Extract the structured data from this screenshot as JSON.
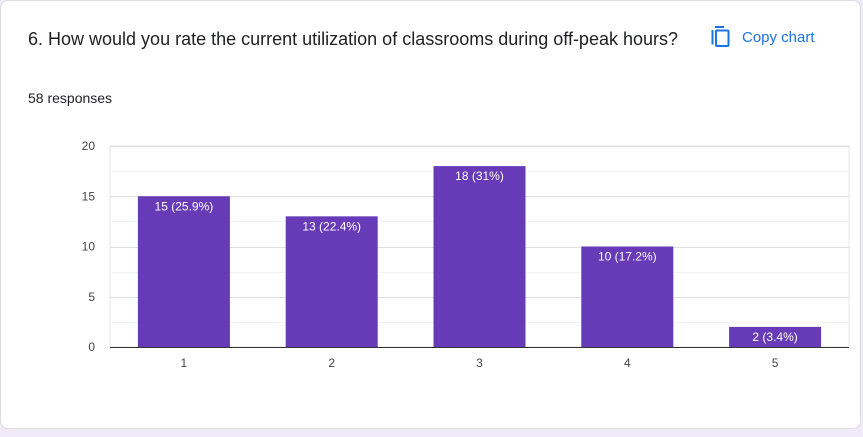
{
  "question": {
    "title": "6. How would you rate the current utilization of classrooms during off-peak hours?",
    "responses": "58 responses"
  },
  "toolbar": {
    "copy_label": "Copy chart",
    "copy_icon": "copy-icon"
  },
  "colors": {
    "bar": "#673ab7",
    "accent": "#1a73e8"
  },
  "chart_data": {
    "type": "bar",
    "categories": [
      "1",
      "2",
      "3",
      "4",
      "5"
    ],
    "values": [
      15,
      13,
      18,
      10,
      2
    ],
    "data_labels": [
      "15 (25.9%)",
      "13 (22.4%)",
      "18 (31%)",
      "10 (17.2%)",
      "2 (3.4%)"
    ],
    "yticks": [
      0,
      5,
      10,
      15,
      20
    ],
    "ylim": [
      0,
      20
    ],
    "grid": true,
    "legend": "none",
    "title": "",
    "xlabel": "",
    "ylabel": ""
  }
}
